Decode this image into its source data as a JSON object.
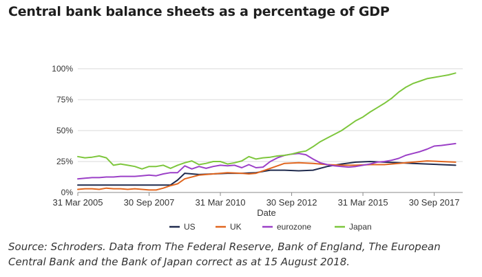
{
  "title": "Central bank balance sheets as a percentage of GDP",
  "source": "Source: Schroders. Data from The Federal Reserve, Bank of England, The European Central Bank and the Bank of Japan correct as at 15 August 2018.",
  "colors": {
    "US": "#1f2a4d",
    "UK": "#e0651e",
    "eurozone": "#9b3fc7",
    "Japan": "#7dc63c",
    "axis": "#888888",
    "grid": "#d9d9d9",
    "text": "#333333"
  },
  "chart_data": {
    "type": "line",
    "title": "Central bank balance sheets as a percentage of GDP",
    "xlabel": "Date",
    "ylabel": "",
    "ylim": [
      0,
      100
    ],
    "yticks": [
      0,
      25,
      50,
      75,
      100
    ],
    "ytick_labels": [
      "0%",
      "25%",
      "50%",
      "75%",
      "100%"
    ],
    "xlim": [
      2005.25,
      2018.75
    ],
    "xticks": [
      2005.25,
      2007.75,
      2010.25,
      2012.75,
      2015.25,
      2017.75
    ],
    "xtick_labels": [
      "31 Mar 2005",
      "30 Sep 2007",
      "31 Mar 2010",
      "30 Sep 2012",
      "31 Mar 2015",
      "30 Sep 2017"
    ],
    "grid": "horizontal",
    "legend": "bottom",
    "series": [
      {
        "name": "US",
        "x": [
          2005.25,
          2006.0,
          2007.0,
          2007.5,
          2008.0,
          2008.5,
          2008.75,
          2009.0,
          2009.5,
          2010.0,
          2010.5,
          2011.0,
          2011.5,
          2012.0,
          2012.5,
          2013.0,
          2013.5,
          2014.0,
          2014.5,
          2015.0,
          2015.5,
          2016.0,
          2016.5,
          2017.0,
          2017.5,
          2018.0,
          2018.5
        ],
        "y": [
          6,
          6,
          6,
          6,
          6,
          6,
          10,
          15.5,
          14.5,
          15,
          15.5,
          15.5,
          16,
          18,
          18,
          17.5,
          18,
          21,
          23,
          24.5,
          25,
          24.5,
          24,
          23.5,
          23,
          22.5,
          22
        ]
      },
      {
        "name": "UK",
        "x": [
          2005.25,
          2005.5,
          2005.75,
          2006.0,
          2006.25,
          2006.5,
          2006.75,
          2007.0,
          2007.25,
          2007.5,
          2007.75,
          2008.0,
          2008.25,
          2008.5,
          2008.75,
          2009.0,
          2009.5,
          2010.0,
          2010.5,
          2011.0,
          2011.25,
          2011.5,
          2012.0,
          2012.5,
          2013.0,
          2013.5,
          2014.0,
          2014.5,
          2015.0,
          2015.5,
          2016.0,
          2016.5,
          2017.0,
          2017.5,
          2018.0,
          2018.5
        ],
        "y": [
          2.5,
          3,
          3,
          2.5,
          3.5,
          3,
          3,
          2.5,
          3,
          2.5,
          2,
          2,
          3.5,
          5.5,
          7,
          11,
          14,
          15,
          16,
          15.5,
          15,
          15.5,
          19.5,
          23.5,
          24,
          23.5,
          22.5,
          22,
          22,
          22.5,
          22.5,
          23.5,
          24.5,
          25.5,
          25,
          24.5
        ]
      },
      {
        "name": "eurozone",
        "x": [
          2005.25,
          2005.5,
          2005.75,
          2006.0,
          2006.25,
          2006.5,
          2006.75,
          2007.0,
          2007.25,
          2007.5,
          2007.75,
          2008.0,
          2008.25,
          2008.5,
          2008.75,
          2009.0,
          2009.25,
          2009.5,
          2009.75,
          2010.0,
          2010.25,
          2010.5,
          2010.75,
          2011.0,
          2011.25,
          2011.5,
          2011.75,
          2012.0,
          2012.25,
          2012.5,
          2012.75,
          2013.0,
          2013.25,
          2013.5,
          2013.75,
          2014.0,
          2014.25,
          2014.5,
          2014.75,
          2015.0,
          2015.25,
          2015.5,
          2015.75,
          2016.0,
          2016.25,
          2016.5,
          2016.75,
          2017.0,
          2017.25,
          2017.5,
          2017.75,
          2018.0,
          2018.5
        ],
        "y": [
          11,
          11.5,
          12,
          12,
          12.5,
          12.5,
          13,
          13,
          13,
          13.5,
          14,
          13.5,
          15,
          16,
          16,
          21.5,
          19,
          21,
          19.5,
          21,
          22,
          21.5,
          22,
          20,
          22.5,
          20,
          20.5,
          25,
          28,
          30,
          31,
          31.5,
          30.5,
          27,
          24,
          22.5,
          21.5,
          21,
          20.5,
          21,
          22,
          23,
          24.5,
          25,
          26,
          27.5,
          30,
          31.5,
          33,
          35,
          37.5,
          38,
          39.5
        ]
      },
      {
        "name": "Japan",
        "x": [
          2005.25,
          2005.5,
          2005.75,
          2006.0,
          2006.25,
          2006.5,
          2006.75,
          2007.0,
          2007.25,
          2007.5,
          2007.75,
          2008.0,
          2008.25,
          2008.5,
          2008.75,
          2009.0,
          2009.25,
          2009.5,
          2009.75,
          2010.0,
          2010.25,
          2010.5,
          2010.75,
          2011.0,
          2011.25,
          2011.5,
          2011.75,
          2012.0,
          2012.25,
          2012.5,
          2012.75,
          2013.0,
          2013.25,
          2013.5,
          2013.75,
          2014.0,
          2014.25,
          2014.5,
          2014.75,
          2015.0,
          2015.25,
          2015.5,
          2015.75,
          2016.0,
          2016.25,
          2016.5,
          2016.75,
          2017.0,
          2017.25,
          2017.5,
          2017.75,
          2018.0,
          2018.25,
          2018.5
        ],
        "y": [
          29,
          28,
          28.5,
          29.5,
          28,
          22,
          23,
          22,
          21,
          19,
          21,
          21,
          22,
          19.5,
          22,
          24,
          25.5,
          22.5,
          23.5,
          25,
          25,
          23,
          24,
          25.5,
          29,
          27,
          28,
          28.5,
          29.5,
          30,
          31,
          32.5,
          33.5,
          37,
          41,
          44,
          47,
          50,
          54,
          58,
          61,
          65,
          68.5,
          72,
          76,
          81,
          85,
          88,
          90,
          92,
          93,
          94,
          95,
          96.5
        ]
      }
    ]
  }
}
